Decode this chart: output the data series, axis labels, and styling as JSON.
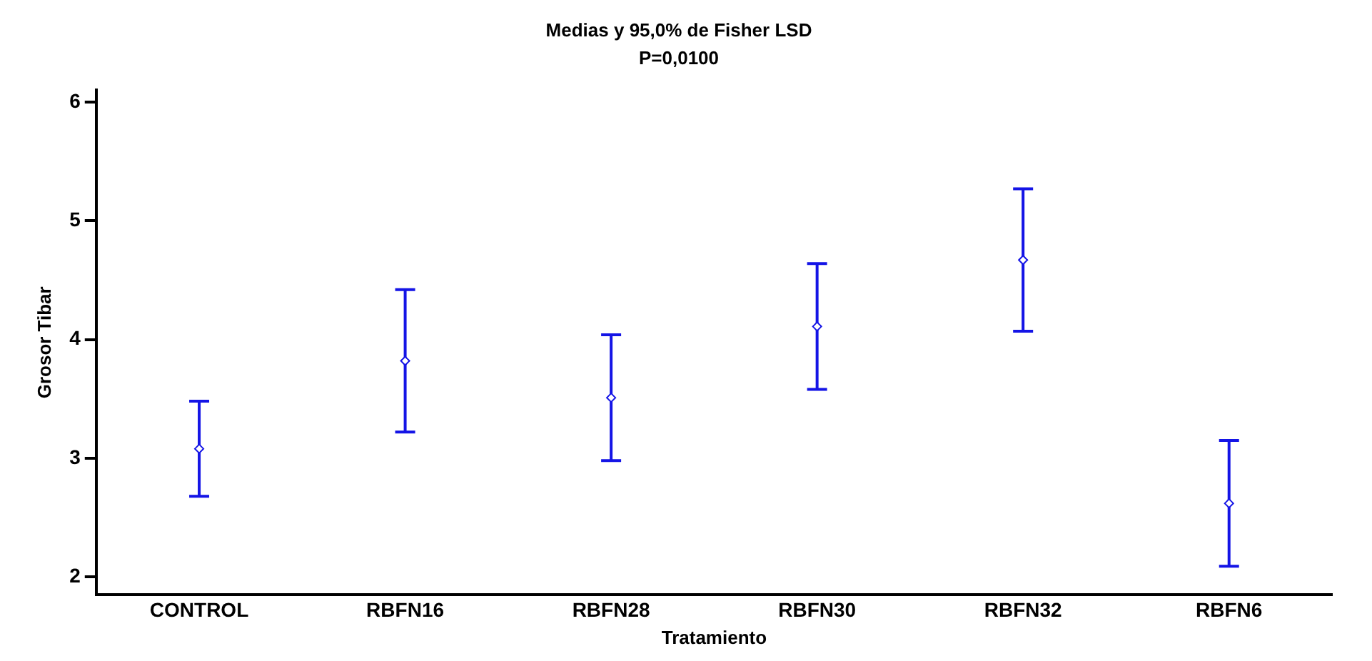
{
  "chart_data": {
    "type": "scatter",
    "title": "Medias y 95,0% de Fisher LSD",
    "subtitle": "P=0,0100",
    "xlabel": "Tratamiento",
    "ylabel": "Grosor Tibar",
    "categories": [
      "CONTROL",
      "RBFN16",
      "RBFN28",
      "RBFN30",
      "RBFN32",
      "RBFN6"
    ],
    "series": [
      {
        "color": "#1414e6",
        "values": [
          3.08,
          3.82,
          3.51,
          4.11,
          4.67,
          2.62
        ],
        "errors": [
          0.4,
          0.6,
          0.53,
          0.53,
          0.6,
          0.53
        ]
      }
    ],
    "ylim": [
      1.85,
      6.1
    ],
    "yticks": [
      2,
      3,
      4,
      5,
      6
    ],
    "grid": false,
    "legend": false,
    "marker": "diamond"
  }
}
